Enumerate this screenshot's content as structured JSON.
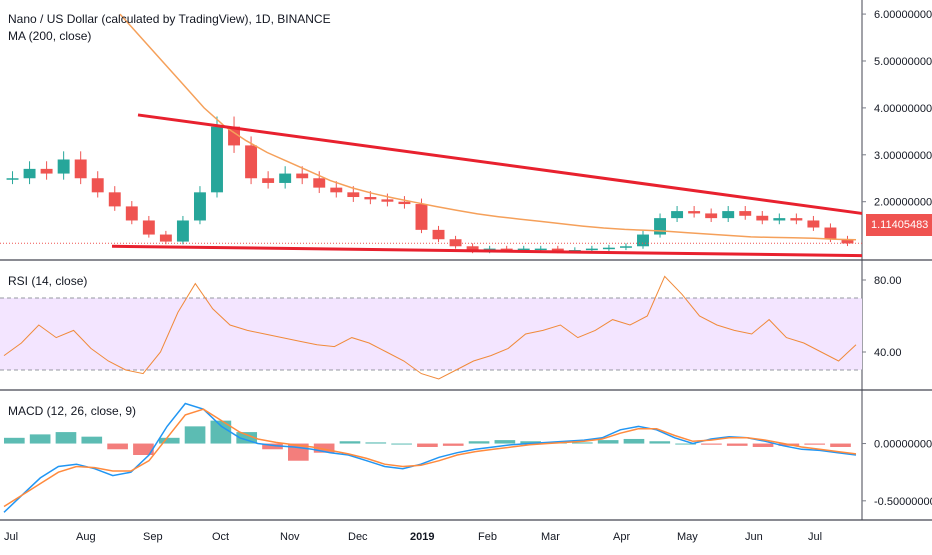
{
  "header": {
    "title": "Nano / US Dollar (calculated by TradingView), 1D, BINANCE",
    "ma_label": "MA (200, close)"
  },
  "rsi_panel": {
    "label": "RSI (14, close)"
  },
  "macd_panel": {
    "label": "MACD (12, 26, close, 9)"
  },
  "last_price": "1.11405483",
  "colors": {
    "trendline": "#e8212e",
    "ma": "#f5a05a",
    "rsi": "#f08a3a",
    "rsi_band": "#f3e5ff",
    "macd_line": "#2196f3",
    "signal_line": "#ff8a3d",
    "hist_up": "#26a69a",
    "hist_down": "#ef5350",
    "candle_up": "#26a69a",
    "candle_down": "#ef5350"
  },
  "chart_data": [
    {
      "type": "candlestick",
      "title": "Nano / US Dollar (calculated by TradingView), 1D, BINANCE",
      "y_ticks": [
        "6.00000000",
        "5.00000000",
        "4.00000000",
        "3.00000000",
        "2.00000000"
      ],
      "ylim": [
        0.8,
        6.3
      ],
      "x_ticks": [
        "Jul",
        "Aug",
        "Sep",
        "Oct",
        "Nov",
        "Dec",
        "2019",
        "Feb",
        "Mar",
        "Apr",
        "May",
        "Jun",
        "Jul"
      ],
      "close_series": [
        2.5,
        2.7,
        2.6,
        2.9,
        2.5,
        2.2,
        1.9,
        1.6,
        1.3,
        1.15,
        1.6,
        2.2,
        3.6,
        3.2,
        2.5,
        2.4,
        2.6,
        2.5,
        2.3,
        2.2,
        2.1,
        2.05,
        2.0,
        1.95,
        1.4,
        1.2,
        1.05,
        0.95,
        1.0,
        0.98,
        1.0,
        1.0,
        0.95,
        0.97,
        1.0,
        1.02,
        1.05,
        1.3,
        1.65,
        1.8,
        1.75,
        1.65,
        1.8,
        1.7,
        1.6,
        1.65,
        1.6,
        1.45,
        1.2,
        1.11
      ],
      "ma_series": [
        6.0,
        5.5,
        5.0,
        4.5,
        4.0,
        3.6,
        3.3,
        3.05,
        2.85,
        2.65,
        2.45,
        2.3,
        2.18,
        2.08,
        1.99,
        1.9,
        1.82,
        1.74,
        1.68,
        1.63,
        1.58,
        1.53,
        1.48,
        1.44,
        1.41,
        1.39,
        1.37,
        1.34,
        1.31,
        1.28,
        1.25,
        1.24,
        1.23,
        1.22,
        1.2,
        1.19
      ],
      "trendlines": [
        {
          "name": "upper",
          "from": 3.85,
          "to": 1.75
        },
        {
          "name": "lower",
          "from": 1.05,
          "to": 0.85
        }
      ],
      "last_price": 1.11405483
    },
    {
      "type": "line",
      "title": "RSI (14, close)",
      "y_ticks": [
        "80.00",
        "40.00"
      ],
      "ylim": [
        20,
        90
      ],
      "band": [
        30,
        70
      ],
      "values": [
        38,
        45,
        55,
        48,
        52,
        42,
        35,
        30,
        28,
        40,
        62,
        78,
        64,
        55,
        52,
        50,
        48,
        46,
        44,
        43,
        48,
        45,
        40,
        35,
        28,
        25,
        30,
        35,
        38,
        42,
        50,
        52,
        55,
        48,
        52,
        58,
        55,
        60,
        82,
        72,
        60,
        55,
        52,
        50,
        58,
        48,
        45,
        40,
        35,
        44
      ]
    },
    {
      "type": "line",
      "title": "MACD (12, 26, close, 9)",
      "y_ticks": [
        "0.00000000",
        "-0.50000000"
      ],
      "ylim": [
        -0.65,
        0.45
      ],
      "macd": [
        -0.6,
        -0.45,
        -0.3,
        -0.2,
        -0.18,
        -0.22,
        -0.28,
        -0.25,
        -0.1,
        0.15,
        0.35,
        0.3,
        0.15,
        0.05,
        0.0,
        -0.02,
        -0.03,
        -0.05,
        -0.08,
        -0.1,
        -0.15,
        -0.2,
        -0.22,
        -0.18,
        -0.12,
        -0.08,
        -0.05,
        -0.03,
        -0.01,
        0.0,
        0.01,
        0.02,
        0.03,
        0.05,
        0.12,
        0.15,
        0.12,
        0.05,
        0.0,
        0.04,
        0.06,
        0.05,
        0.02,
        -0.02,
        -0.05,
        -0.06,
        -0.08,
        -0.1
      ],
      "signal": [
        -0.55,
        -0.45,
        -0.35,
        -0.25,
        -0.2,
        -0.21,
        -0.24,
        -0.24,
        -0.15,
        0.05,
        0.25,
        0.3,
        0.2,
        0.1,
        0.04,
        0.01,
        -0.01,
        -0.03,
        -0.06,
        -0.09,
        -0.13,
        -0.18,
        -0.2,
        -0.19,
        -0.15,
        -0.1,
        -0.07,
        -0.05,
        -0.03,
        -0.01,
        0.0,
        0.01,
        0.02,
        0.04,
        0.09,
        0.13,
        0.13,
        0.07,
        0.02,
        0.03,
        0.05,
        0.05,
        0.03,
        0.0,
        -0.03,
        -0.05,
        -0.07,
        -0.09
      ],
      "histogram": [
        0.05,
        0.08,
        0.1,
        0.06,
        -0.05,
        -0.1,
        0.05,
        0.15,
        0.2,
        0.1,
        -0.05,
        -0.15,
        -0.08,
        0.02,
        0.01,
        0.0,
        -0.03,
        -0.02,
        0.02,
        0.03,
        0.02,
        0.01,
        0.01,
        0.03,
        0.04,
        0.02,
        0.0,
        -0.01,
        -0.02,
        -0.03,
        -0.02,
        -0.01,
        -0.03
      ]
    }
  ]
}
